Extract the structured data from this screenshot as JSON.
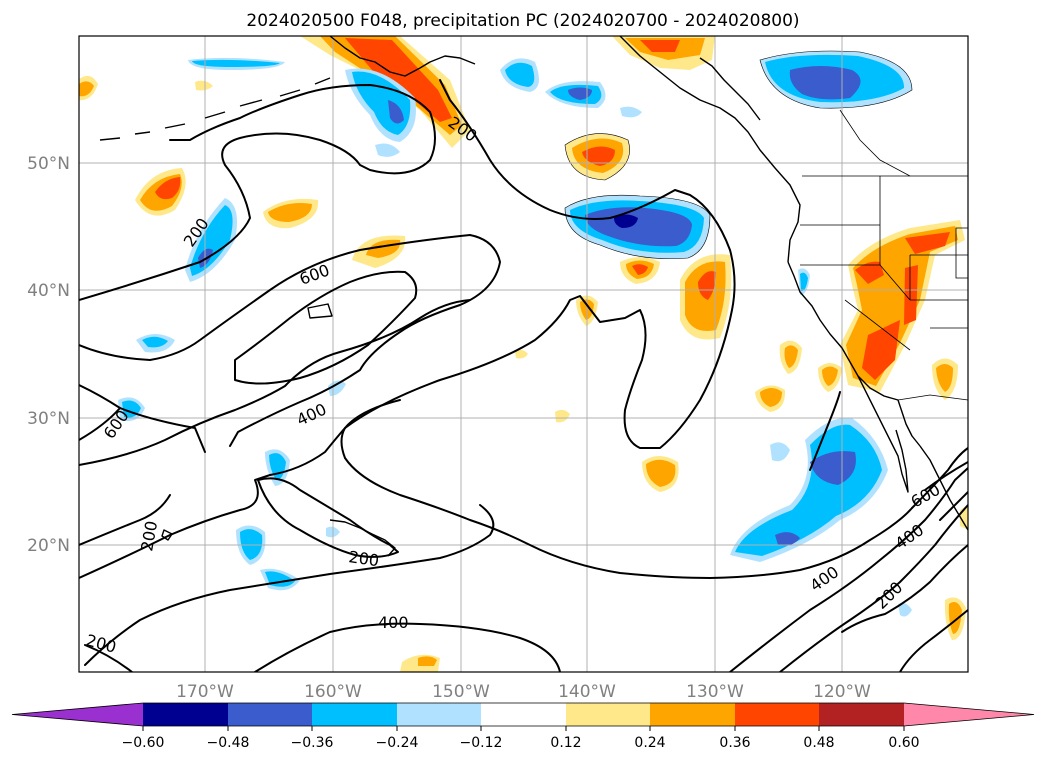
{
  "title": "2024020500 F048, precipitation PC (2024020700 - 2024020800)",
  "map": {
    "lon_labels": [
      "170°W",
      "160°W",
      "150°W",
      "140°W",
      "130°W",
      "120°W"
    ],
    "lat_labels": [
      "50°N",
      "40°N",
      "30°N",
      "20°N"
    ],
    "contour_labels": [
      "200",
      "200",
      "200",
      "200",
      "200",
      "200",
      "400",
      "400",
      "400",
      "400",
      "600",
      "600",
      "600"
    ]
  },
  "colorbar": {
    "colors": [
      "#9b30d0",
      "#000090",
      "#3a5ccc",
      "#00bfff",
      "#b0e2ff",
      "#ffffff",
      "#ffe88a",
      "#ffa500",
      "#ff4500",
      "#b22222",
      "#ff88aa"
    ],
    "tick_labels": [
      "−0.60",
      "−0.48",
      "−0.36",
      "−0.24",
      "−0.12",
      "0.12",
      "0.24",
      "0.36",
      "0.48",
      "0.60"
    ]
  }
}
